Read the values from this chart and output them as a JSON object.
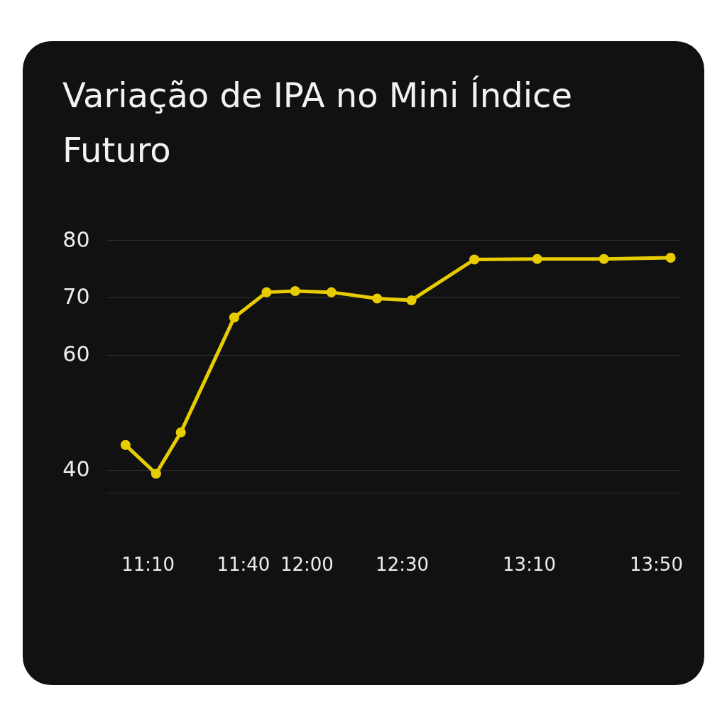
{
  "chart_data": {
    "type": "line",
    "title": "Variação de IPA no Mini Índice Futuro",
    "x": [
      11.05,
      11.21,
      11.34,
      11.62,
      11.79,
      11.94,
      12.13,
      12.37,
      12.55,
      12.88,
      13.21,
      13.56,
      13.91
    ],
    "values": [
      44.3,
      39.3,
      46.5,
      66.5,
      70.9,
      71.1,
      70.9,
      69.8,
      69.5,
      76.6,
      76.7,
      76.7,
      76.9
    ],
    "color": "#e6cc00",
    "xlim": [
      10.95,
      13.96
    ],
    "xticks": [
      {
        "value": 11.1667,
        "label": "11:10"
      },
      {
        "value": 11.6667,
        "label": "11:40"
      },
      {
        "value": 12,
        "label": "12:00"
      },
      {
        "value": 12.5,
        "label": "12:30"
      },
      {
        "value": 13.1667,
        "label": "13:10"
      },
      {
        "value": 13.8333,
        "label": "13:50"
      }
    ],
    "ylim": [
      36,
      80
    ],
    "yticks": [
      40,
      60,
      70,
      80
    ],
    "grid": "y",
    "marker": "circle"
  }
}
